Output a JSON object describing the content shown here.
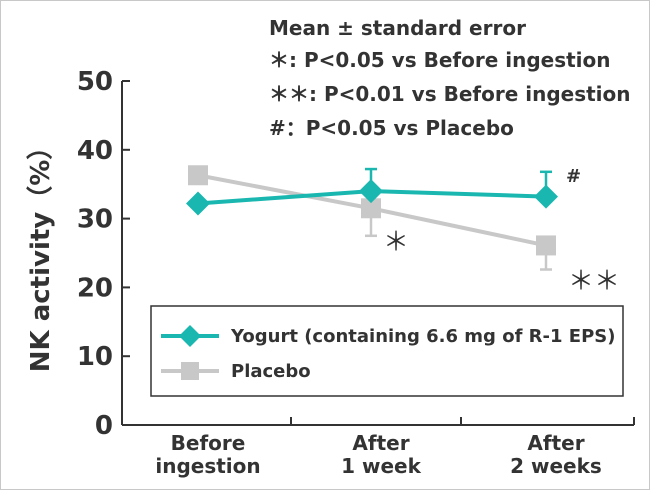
{
  "chart_data": {
    "type": "line",
    "ylabel": "NK activity（%）",
    "ylim": [
      0,
      50
    ],
    "yticks": [
      "0",
      "10",
      "20",
      "30",
      "40",
      "50"
    ],
    "categories": [
      "Before\ningestion",
      "After\n1 week",
      "After\n2 weeks"
    ],
    "series": [
      {
        "name": "Yogurt (containing 6.6 mg of R-1 EPS)",
        "color": "#1ab7b0",
        "marker": "diamond",
        "values": [
          32.2,
          34.0,
          33.2
        ],
        "errors": [
          0,
          3.2,
          3.6
        ],
        "significance": [
          "",
          "",
          "#"
        ]
      },
      {
        "name": "Placebo",
        "color": "#c8c8c8",
        "marker": "square",
        "values": [
          36.3,
          31.5,
          26.1
        ],
        "errors": [
          0,
          4.0,
          3.5
        ],
        "significance": [
          "",
          "＊",
          "＊＊"
        ]
      }
    ],
    "legend": "bottom-inside",
    "grid": false
  },
  "notes": [
    "Mean ± standard error",
    "＊: P<0.05 vs Before ingestion",
    "＊＊: P<0.01 vs Before ingestion",
    "#：P<0.05 vs Placebo"
  ]
}
